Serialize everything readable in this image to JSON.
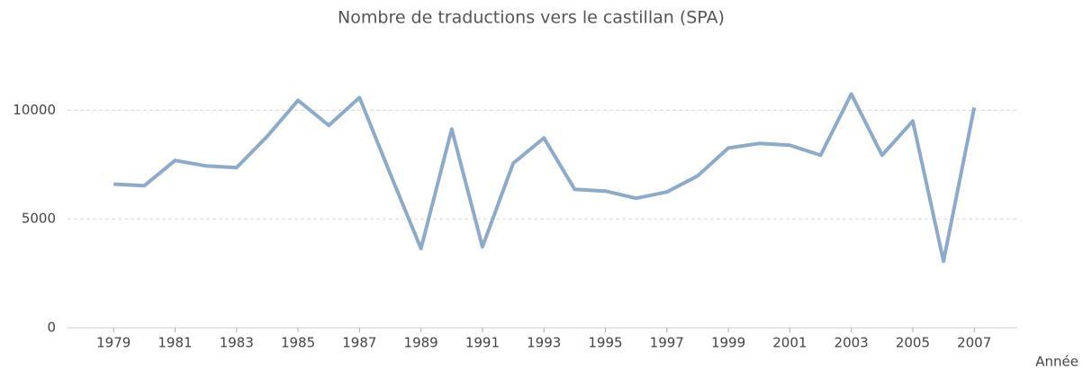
{
  "chart_data": {
    "type": "line",
    "title": "Nombre de traductions vers le castillan (SPA)",
    "x_label": "Année",
    "x": [
      1979,
      1980,
      1981,
      1982,
      1983,
      1984,
      1985,
      1986,
      1987,
      1988,
      1989,
      1990,
      1991,
      1992,
      1993,
      1994,
      1995,
      1996,
      1997,
      1998,
      1999,
      2000,
      2001,
      2002,
      2003,
      2004,
      2005,
      2006,
      2007
    ],
    "series": [
      {
        "name": "SPA",
        "color": "#8eaacb",
        "values": [
          6600,
          6530,
          7690,
          7440,
          7360,
          8800,
          10450,
          9300,
          10580,
          7070,
          3640,
          9130,
          3720,
          7560,
          8720,
          6360,
          6280,
          5950,
          6240,
          6980,
          8260,
          8470,
          8390,
          7930,
          10740,
          7930,
          9500,
          3060,
          10120
        ]
      }
    ],
    "xlim": [
      1977.5,
      2008.4
    ],
    "xticks": [
      1979,
      1981,
      1983,
      1985,
      1987,
      1989,
      1991,
      1993,
      1995,
      1997,
      1999,
      2001,
      2003,
      2005,
      2007
    ],
    "ylim": [
      0,
      12000
    ],
    "yticks": [
      0,
      5000,
      10000
    ],
    "grid": true
  }
}
